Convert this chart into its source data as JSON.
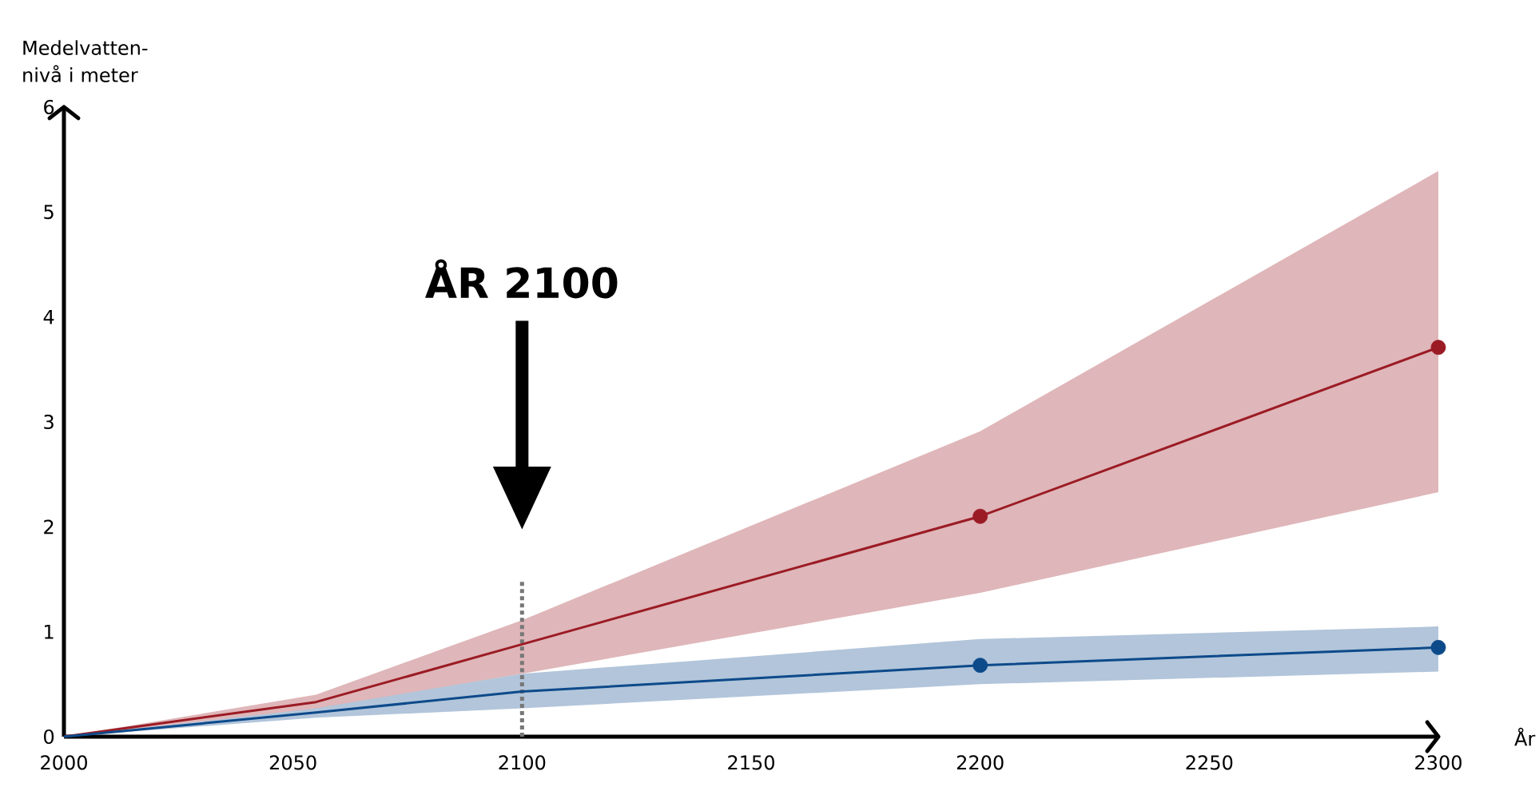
{
  "chart_data": {
    "type": "line",
    "xlabel": "År",
    "ylabel": "Medelvatten-nivå i meter",
    "xlim": [
      2000,
      2300
    ],
    "ylim": [
      0,
      6
    ],
    "xticks": [
      2000,
      2050,
      2100,
      2150,
      2200,
      2250,
      2300
    ],
    "yticks": [
      0,
      1,
      2,
      3,
      4,
      5,
      6
    ],
    "grid": false,
    "annotations": [
      "ÅR 2100"
    ],
    "ref_lines": [
      {
        "axis": "x",
        "value": 2100,
        "line_style": "dotted",
        "color": "#777777"
      }
    ],
    "series": [
      {
        "color": "#9b1b24",
        "marker": "none",
        "x": [
          2000,
          2055,
          2100,
          2200,
          2300
        ],
        "values": [
          0,
          0.33,
          0.88,
          2.1,
          3.71
        ],
        "lower": [
          0,
          0.26,
          0.6,
          1.37,
          2.33
        ],
        "upper": [
          0,
          0.4,
          1.11,
          2.91,
          5.39
        ]
      },
      {
        "type": "scatter",
        "color": "#9b1b24",
        "marker": "circle",
        "x": [
          2200,
          2300
        ],
        "values": [
          2.1,
          3.71
        ]
      },
      {
        "color": "#0d4a8a",
        "marker": "none",
        "x": [
          2000,
          2055,
          2100,
          2200,
          2300
        ],
        "values": [
          0,
          0.23,
          0.43,
          0.68,
          0.85
        ],
        "lower": [
          0,
          0.18,
          0.27,
          0.5,
          0.62
        ],
        "upper": [
          0,
          0.27,
          0.6,
          0.93,
          1.05
        ]
      },
      {
        "type": "scatter",
        "color": "#0d4a8a",
        "marker": "circle",
        "x": [
          2200,
          2300
        ],
        "values": [
          0.68,
          0.85
        ]
      }
    ]
  }
}
